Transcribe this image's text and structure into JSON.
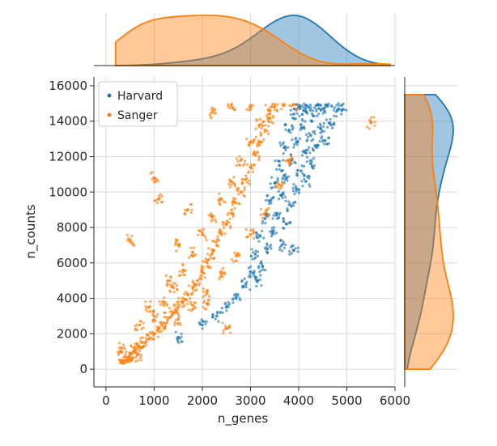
{
  "chart_data": {
    "type": "scatter",
    "title": "",
    "xlabel": "n_genes",
    "ylabel": "n_counts",
    "xlim": [
      -250,
      6000
    ],
    "ylim": [
      -1000,
      16500
    ],
    "xticks": [
      "0",
      "1000",
      "2000",
      "3000",
      "4000",
      "5000",
      "6000"
    ],
    "yticks": [
      "0",
      "2000",
      "4000",
      "6000",
      "8000",
      "10000",
      "12000",
      "14000",
      "16000"
    ],
    "grid": true,
    "legend_position": "top-left",
    "marginals": {
      "top": "kde histogram of n_genes",
      "right": "kde histogram of n_counts"
    },
    "series": [
      {
        "name": "Harvard",
        "color": "#1f77b4",
        "points": [
          [
            4000,
            14900
          ],
          [
            4200,
            14800
          ],
          [
            4400,
            14900
          ],
          [
            4600,
            14850
          ],
          [
            4900,
            14900
          ],
          [
            3900,
            14400
          ],
          [
            4100,
            14600
          ],
          [
            4300,
            14300
          ],
          [
            4500,
            14700
          ],
          [
            4800,
            14600
          ],
          [
            3800,
            13500
          ],
          [
            4050,
            13800
          ],
          [
            4250,
            13200
          ],
          [
            4450,
            13600
          ],
          [
            4650,
            13900
          ],
          [
            3700,
            12500
          ],
          [
            3950,
            12800
          ],
          [
            4150,
            12200
          ],
          [
            4350,
            12600
          ],
          [
            4550,
            12900
          ],
          [
            3600,
            11500
          ],
          [
            3850,
            11800
          ],
          [
            4050,
            11200
          ],
          [
            4250,
            11600
          ],
          [
            3500,
            10500
          ],
          [
            3750,
            10800
          ],
          [
            3950,
            10200
          ],
          [
            4150,
            10600
          ],
          [
            3400,
            9500
          ],
          [
            3650,
            9800
          ],
          [
            3850,
            9200
          ],
          [
            3300,
            8500
          ],
          [
            3550,
            8800
          ],
          [
            3750,
            8200
          ],
          [
            3200,
            7500
          ],
          [
            3450,
            7800
          ],
          [
            3650,
            7000
          ],
          [
            3100,
            6500
          ],
          [
            3350,
            6800
          ],
          [
            3900,
            6700
          ],
          [
            3000,
            5500
          ],
          [
            3250,
            5800
          ],
          [
            2900,
            4800
          ],
          [
            3150,
            5000
          ],
          [
            2700,
            4000
          ],
          [
            2500,
            3500
          ],
          [
            2300,
            3000
          ],
          [
            2000,
            2500
          ],
          [
            1500,
            1800
          ]
        ]
      },
      {
        "name": "Sanger",
        "color": "#ff7f0e",
        "points": [
          [
            300,
            500
          ],
          [
            400,
            700
          ],
          [
            500,
            900
          ],
          [
            600,
            1100
          ],
          [
            700,
            1300
          ],
          [
            800,
            1500
          ],
          [
            900,
            1700
          ],
          [
            1000,
            2000
          ],
          [
            1100,
            2300
          ],
          [
            1200,
            2600
          ],
          [
            1300,
            2900
          ],
          [
            1400,
            3200
          ],
          [
            1500,
            3500
          ],
          [
            1600,
            3800
          ],
          [
            1700,
            4200
          ],
          [
            1800,
            4600
          ],
          [
            1900,
            5000
          ],
          [
            2000,
            5500
          ],
          [
            2100,
            6000
          ],
          [
            2200,
            6500
          ],
          [
            2300,
            7000
          ],
          [
            2400,
            7600
          ],
          [
            2500,
            8200
          ],
          [
            2600,
            8800
          ],
          [
            2700,
            9400
          ],
          [
            2800,
            10000
          ],
          [
            2900,
            10700
          ],
          [
            3000,
            11400
          ],
          [
            3100,
            12100
          ],
          [
            3200,
            12800
          ],
          [
            3300,
            13500
          ],
          [
            3400,
            14200
          ],
          [
            3500,
            14800
          ],
          [
            3700,
            14900
          ],
          [
            3900,
            14950
          ],
          [
            1000,
            3000
          ],
          [
            1200,
            3800
          ],
          [
            1400,
            4600
          ],
          [
            1600,
            5600
          ],
          [
            1800,
            6600
          ],
          [
            2000,
            7600
          ],
          [
            2200,
            8600
          ],
          [
            2400,
            9600
          ],
          [
            2600,
            10600
          ],
          [
            2800,
            11800
          ],
          [
            3000,
            12800
          ],
          [
            3200,
            13800
          ],
          [
            3400,
            14600
          ],
          [
            1500,
            2800
          ],
          [
            1800,
            3600
          ],
          [
            2100,
            4400
          ],
          [
            2400,
            5400
          ],
          [
            2700,
            6400
          ],
          [
            3000,
            7600
          ],
          [
            3300,
            8800
          ],
          [
            3600,
            10400
          ],
          [
            3800,
            11800
          ],
          [
            500,
            7300
          ],
          [
            1100,
            9600
          ],
          [
            1000,
            10800
          ],
          [
            5500,
            13900
          ],
          [
            2500,
            2300
          ],
          [
            2100,
            3700
          ],
          [
            700,
            2500
          ],
          [
            900,
            3500
          ],
          [
            1300,
            5000
          ],
          [
            2200,
            14500
          ],
          [
            2600,
            14900
          ],
          [
            3000,
            14900
          ],
          [
            1700,
            9000
          ],
          [
            1500,
            7000
          ],
          [
            350,
            400
          ],
          [
            450,
            450
          ],
          [
            550,
            600
          ],
          [
            650,
            800
          ],
          [
            320,
            1200
          ]
        ]
      }
    ]
  }
}
